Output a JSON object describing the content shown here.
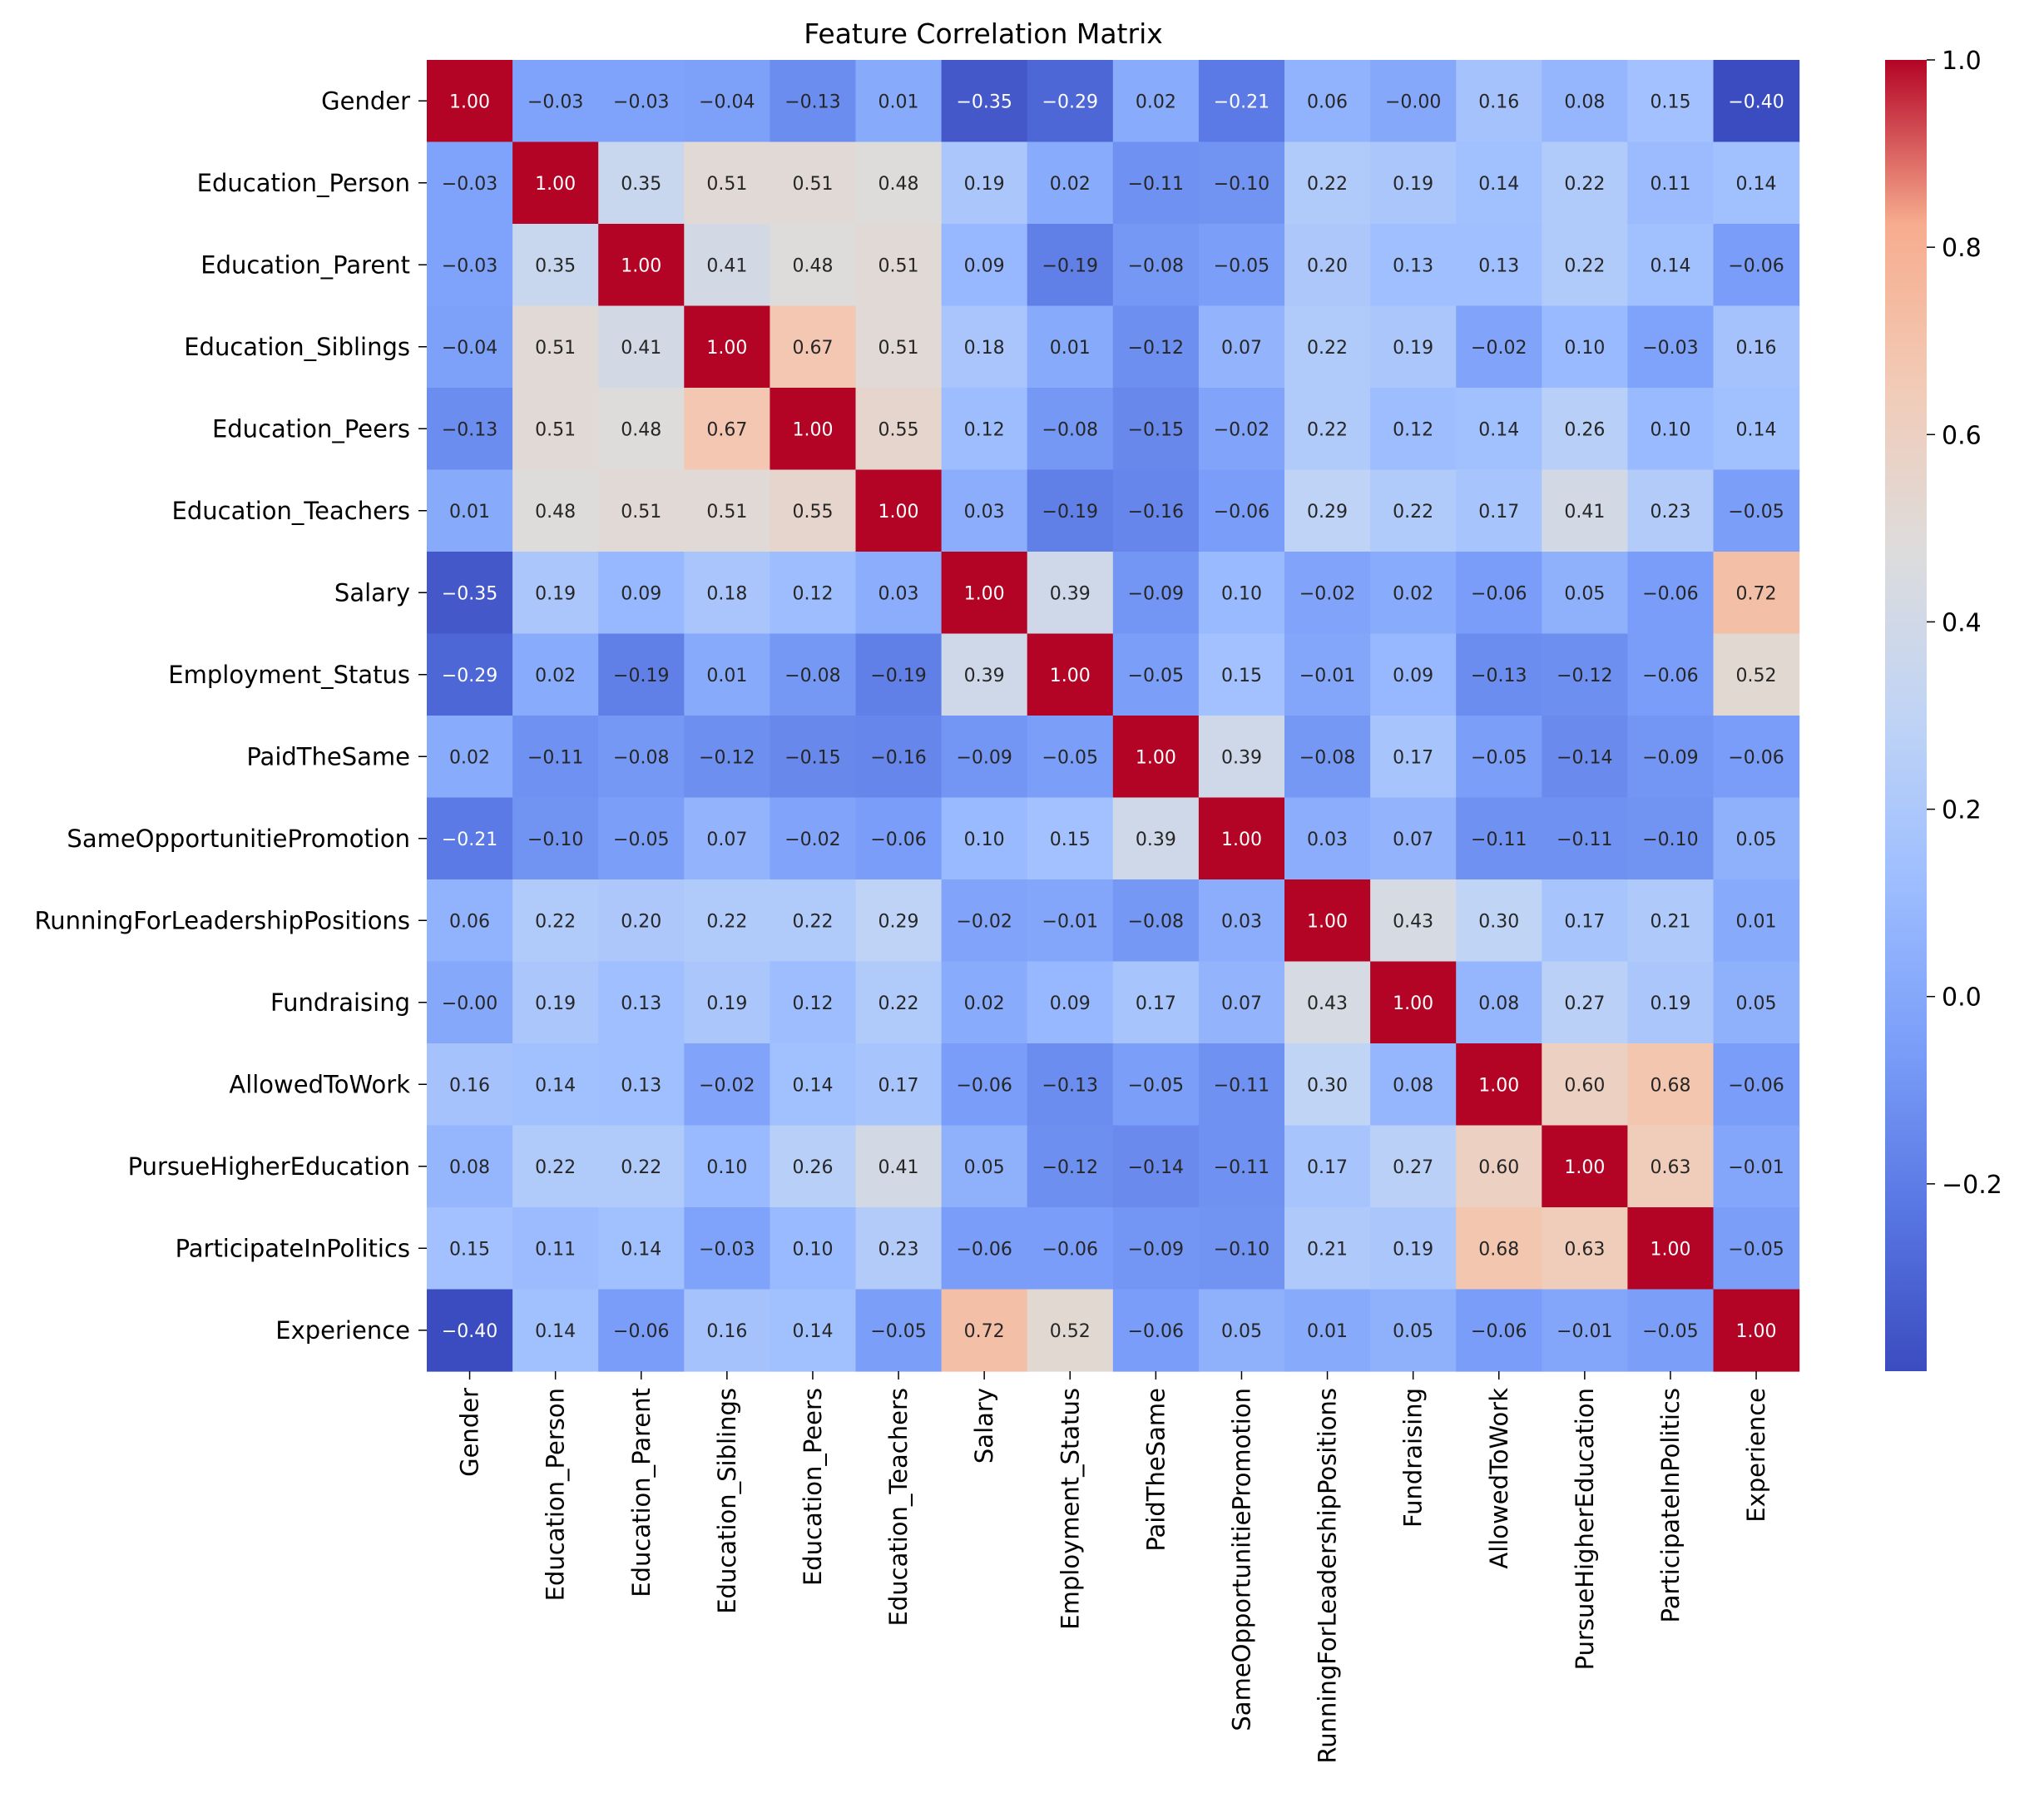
{
  "chart_data": {
    "type": "heatmap",
    "title": "Feature Correlation Matrix",
    "xlabel": "",
    "ylabel": "",
    "labels": [
      "Gender",
      "Education_Person",
      "Education_Parent",
      "Education_Siblings",
      "Education_Peers",
      "Education_Teachers",
      "Salary",
      "Employment_Status",
      "PaidTheSame",
      "SameOpportunitiePromotion",
      "RunningForLeadershipPositions",
      "Fundraising",
      "AllowedToWork",
      "PursueHigherEducation",
      "ParticipateInPolitics",
      "Experience"
    ],
    "values": [
      [
        1.0,
        -0.03,
        -0.03,
        -0.04,
        -0.13,
        0.01,
        -0.35,
        -0.29,
        0.02,
        -0.21,
        0.06,
        -0.0,
        0.16,
        0.08,
        0.15,
        -0.4
      ],
      [
        -0.03,
        1.0,
        0.35,
        0.51,
        0.51,
        0.48,
        0.19,
        0.02,
        -0.11,
        -0.1,
        0.22,
        0.19,
        0.14,
        0.22,
        0.11,
        0.14
      ],
      [
        -0.03,
        0.35,
        1.0,
        0.41,
        0.48,
        0.51,
        0.09,
        -0.19,
        -0.08,
        -0.05,
        0.2,
        0.13,
        0.13,
        0.22,
        0.14,
        -0.06
      ],
      [
        -0.04,
        0.51,
        0.41,
        1.0,
        0.67,
        0.51,
        0.18,
        0.01,
        -0.12,
        0.07,
        0.22,
        0.19,
        -0.02,
        0.1,
        -0.03,
        0.16
      ],
      [
        -0.13,
        0.51,
        0.48,
        0.67,
        1.0,
        0.55,
        0.12,
        -0.08,
        -0.15,
        -0.02,
        0.22,
        0.12,
        0.14,
        0.26,
        0.1,
        0.14
      ],
      [
        0.01,
        0.48,
        0.51,
        0.51,
        0.55,
        1.0,
        0.03,
        -0.19,
        -0.16,
        -0.06,
        0.29,
        0.22,
        0.17,
        0.41,
        0.23,
        -0.05
      ],
      [
        -0.35,
        0.19,
        0.09,
        0.18,
        0.12,
        0.03,
        1.0,
        0.39,
        -0.09,
        0.1,
        -0.02,
        0.02,
        -0.06,
        0.05,
        -0.06,
        0.72
      ],
      [
        -0.29,
        0.02,
        -0.19,
        0.01,
        -0.08,
        -0.19,
        0.39,
        1.0,
        -0.05,
        0.15,
        -0.01,
        0.09,
        -0.13,
        -0.12,
        -0.06,
        0.52
      ],
      [
        0.02,
        -0.11,
        -0.08,
        -0.12,
        -0.15,
        -0.16,
        -0.09,
        -0.05,
        1.0,
        0.39,
        -0.08,
        0.17,
        -0.05,
        -0.14,
        -0.09,
        -0.06
      ],
      [
        -0.21,
        -0.1,
        -0.05,
        0.07,
        -0.02,
        -0.06,
        0.1,
        0.15,
        0.39,
        1.0,
        0.03,
        0.07,
        -0.11,
        -0.11,
        -0.1,
        0.05
      ],
      [
        0.06,
        0.22,
        0.2,
        0.22,
        0.22,
        0.29,
        -0.02,
        -0.01,
        -0.08,
        0.03,
        1.0,
        0.43,
        0.3,
        0.17,
        0.21,
        0.01
      ],
      [
        -0.0,
        0.19,
        0.13,
        0.19,
        0.12,
        0.22,
        0.02,
        0.09,
        0.17,
        0.07,
        0.43,
        1.0,
        0.08,
        0.27,
        0.19,
        0.05
      ],
      [
        0.16,
        0.14,
        0.13,
        -0.02,
        0.14,
        0.17,
        -0.06,
        -0.13,
        -0.05,
        -0.11,
        0.3,
        0.08,
        1.0,
        0.6,
        0.68,
        -0.06
      ],
      [
        0.08,
        0.22,
        0.22,
        0.1,
        0.26,
        0.41,
        0.05,
        -0.12,
        -0.14,
        -0.11,
        0.17,
        0.27,
        0.6,
        1.0,
        0.63,
        -0.01
      ],
      [
        0.15,
        0.11,
        0.14,
        -0.03,
        0.1,
        0.23,
        -0.06,
        -0.06,
        -0.09,
        -0.1,
        0.21,
        0.19,
        0.68,
        0.63,
        1.0,
        -0.05
      ],
      [
        -0.4,
        0.14,
        -0.06,
        0.16,
        0.14,
        -0.05,
        0.72,
        0.52,
        -0.06,
        0.05,
        0.01,
        0.05,
        -0.06,
        -0.01,
        -0.05,
        1.0
      ]
    ],
    "value_labels": [
      [
        "1.00",
        "−0.03",
        "−0.03",
        "−0.04",
        "−0.13",
        "0.01",
        "−0.35",
        "−0.29",
        "0.02",
        "−0.21",
        "0.06",
        "−0.00",
        "0.16",
        "0.08",
        "0.15",
        "−0.40"
      ],
      [
        "−0.03",
        "1.00",
        "0.35",
        "0.51",
        "0.51",
        "0.48",
        "0.19",
        "0.02",
        "−0.11",
        "−0.10",
        "0.22",
        "0.19",
        "0.14",
        "0.22",
        "0.11",
        "0.14"
      ],
      [
        "−0.03",
        "0.35",
        "1.00",
        "0.41",
        "0.48",
        "0.51",
        "0.09",
        "−0.19",
        "−0.08",
        "−0.05",
        "0.20",
        "0.13",
        "0.13",
        "0.22",
        "0.14",
        "−0.06"
      ],
      [
        "−0.04",
        "0.51",
        "0.41",
        "1.00",
        "0.67",
        "0.51",
        "0.18",
        "0.01",
        "−0.12",
        "0.07",
        "0.22",
        "0.19",
        "−0.02",
        "0.10",
        "−0.03",
        "0.16"
      ],
      [
        "−0.13",
        "0.51",
        "0.48",
        "0.67",
        "1.00",
        "0.55",
        "0.12",
        "−0.08",
        "−0.15",
        "−0.02",
        "0.22",
        "0.12",
        "0.14",
        "0.26",
        "0.10",
        "0.14"
      ],
      [
        "0.01",
        "0.48",
        "0.51",
        "0.51",
        "0.55",
        "1.00",
        "0.03",
        "−0.19",
        "−0.16",
        "−0.06",
        "0.29",
        "0.22",
        "0.17",
        "0.41",
        "0.23",
        "−0.05"
      ],
      [
        "−0.35",
        "0.19",
        "0.09",
        "0.18",
        "0.12",
        "0.03",
        "1.00",
        "0.39",
        "−0.09",
        "0.10",
        "−0.02",
        "0.02",
        "−0.06",
        "0.05",
        "−0.06",
        "0.72"
      ],
      [
        "−0.29",
        "0.02",
        "−0.19",
        "0.01",
        "−0.08",
        "−0.19",
        "0.39",
        "1.00",
        "−0.05",
        "0.15",
        "−0.01",
        "0.09",
        "−0.13",
        "−0.12",
        "−0.06",
        "0.52"
      ],
      [
        "0.02",
        "−0.11",
        "−0.08",
        "−0.12",
        "−0.15",
        "−0.16",
        "−0.09",
        "−0.05",
        "1.00",
        "0.39",
        "−0.08",
        "0.17",
        "−0.05",
        "−0.14",
        "−0.09",
        "−0.06"
      ],
      [
        "−0.21",
        "−0.10",
        "−0.05",
        "0.07",
        "−0.02",
        "−0.06",
        "0.10",
        "0.15",
        "0.39",
        "1.00",
        "0.03",
        "0.07",
        "−0.11",
        "−0.11",
        "−0.10",
        "0.05"
      ],
      [
        "0.06",
        "0.22",
        "0.20",
        "0.22",
        "0.22",
        "0.29",
        "−0.02",
        "−0.01",
        "−0.08",
        "0.03",
        "1.00",
        "0.43",
        "0.30",
        "0.17",
        "0.21",
        "0.01"
      ],
      [
        "−0.00",
        "0.19",
        "0.13",
        "0.19",
        "0.12",
        "0.22",
        "0.02",
        "0.09",
        "0.17",
        "0.07",
        "0.43",
        "1.00",
        "0.08",
        "0.27",
        "0.19",
        "0.05"
      ],
      [
        "0.16",
        "0.14",
        "0.13",
        "−0.02",
        "0.14",
        "0.17",
        "−0.06",
        "−0.13",
        "−0.05",
        "−0.11",
        "0.30",
        "0.08",
        "1.00",
        "0.60",
        "0.68",
        "−0.06"
      ],
      [
        "0.08",
        "0.22",
        "0.22",
        "0.10",
        "0.26",
        "0.41",
        "0.05",
        "−0.12",
        "−0.14",
        "−0.11",
        "0.17",
        "0.27",
        "0.60",
        "1.00",
        "0.63",
        "−0.01"
      ],
      [
        "0.15",
        "0.11",
        "0.14",
        "−0.03",
        "0.10",
        "0.23",
        "−0.06",
        "−0.06",
        "−0.09",
        "−0.10",
        "0.21",
        "0.19",
        "0.68",
        "0.63",
        "1.00",
        "−0.05"
      ],
      [
        "−0.40",
        "0.14",
        "−0.06",
        "0.16",
        "0.14",
        "−0.05",
        "0.72",
        "0.52",
        "−0.06",
        "0.05",
        "0.01",
        "0.05",
        "−0.06",
        "−0.01",
        "−0.05",
        "1.00"
      ]
    ],
    "colormap": "coolwarm",
    "vmin": -0.4,
    "vmax": 1.0,
    "colorbar_ticks": [
      1.0,
      0.8,
      0.6,
      0.4,
      0.2,
      0.0,
      -0.2
    ],
    "colorbar_tick_labels": [
      "1.0",
      "0.8",
      "0.6",
      "0.4",
      "0.2",
      "0.0",
      "−0.2"
    ],
    "legend_position": "right",
    "grid": false
  }
}
